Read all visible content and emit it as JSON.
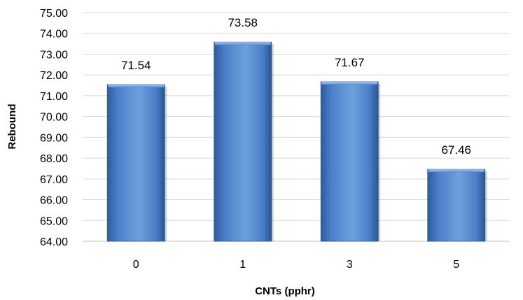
{
  "chart_data": {
    "type": "bar",
    "categories": [
      "0",
      "1",
      "3",
      "5"
    ],
    "values": [
      71.54,
      73.58,
      71.67,
      67.46
    ],
    "data_labels": [
      "71.54",
      "73.58",
      "71.67",
      "67.46"
    ],
    "xlabel": "CNTs (pphr)",
    "ylabel": "Rebound",
    "ylim": [
      64,
      75
    ],
    "y_ticks": [
      64,
      65,
      66,
      67,
      68,
      69,
      70,
      71,
      72,
      73,
      74,
      75
    ],
    "y_tick_labels": [
      "64.00",
      "65.00",
      "66.00",
      "67.00",
      "68.00",
      "69.00",
      "70.00",
      "71.00",
      "72.00",
      "73.00",
      "74.00",
      "75.00"
    ],
    "grid": true,
    "legend": "none",
    "colors": {
      "bar_light": "#6FA0DD",
      "bar_mid": "#4A7EC8",
      "bar_dark": "#2F5C99",
      "grid": "#D9D9D9",
      "axis": "#BFBFBF",
      "text": "#000000"
    }
  }
}
